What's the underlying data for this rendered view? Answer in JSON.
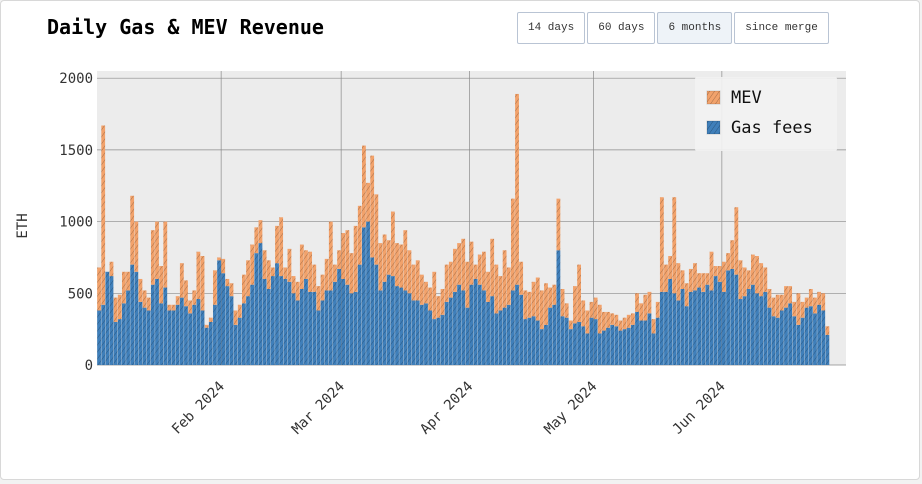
{
  "title": "Daily Gas & MEV Revenue",
  "range_buttons": [
    {
      "label": "14 days",
      "active": false
    },
    {
      "label": "60 days",
      "active": false
    },
    {
      "label": "6 months",
      "active": true
    },
    {
      "label": "since merge",
      "active": false
    }
  ],
  "colors": {
    "gas": "#3f7fba",
    "mev": "#f2a26b",
    "plot_bg": "#ececec",
    "grid": "#8a8a8a"
  },
  "chart_data": {
    "type": "bar",
    "stacked": true,
    "hatched": true,
    "title": "Daily Gas & MEV Revenue",
    "xlabel": "",
    "ylabel": "ETH",
    "ylim": [
      0,
      2050
    ],
    "yticks": [
      0,
      500,
      1000,
      1500,
      2000
    ],
    "x_start": "2024-01-02",
    "x_end": "2024-06-30",
    "xticks": [
      {
        "label": "Feb 2024",
        "date": "2024-02-01"
      },
      {
        "label": "Mar 2024",
        "date": "2024-03-01"
      },
      {
        "label": "Apr 2024",
        "date": "2024-04-01"
      },
      {
        "label": "May 2024",
        "date": "2024-05-01"
      },
      {
        "label": "Jun 2024",
        "date": "2024-06-01"
      }
    ],
    "legend": {
      "position": "top-right",
      "entries": [
        "MEV",
        "Gas fees"
      ]
    },
    "grid": true,
    "series": [
      {
        "name": "Gas fees",
        "values": [
          380,
          420,
          650,
          620,
          300,
          320,
          430,
          520,
          700,
          650,
          440,
          400,
          380,
          560,
          600,
          430,
          540,
          380,
          380,
          420,
          470,
          410,
          360,
          420,
          460,
          380,
          260,
          300,
          420,
          730,
          640,
          550,
          480,
          280,
          330,
          430,
          480,
          560,
          780,
          850,
          600,
          530,
          620,
          710,
          620,
          600,
          580,
          500,
          450,
          530,
          600,
          510,
          510,
          380,
          450,
          520,
          520,
          580,
          670,
          600,
          560,
          500,
          510,
          700,
          960,
          1000,
          750,
          700,
          520,
          580,
          630,
          620,
          550,
          540,
          520,
          500,
          450,
          450,
          420,
          430,
          380,
          320,
          330,
          350,
          440,
          470,
          510,
          560,
          520,
          400,
          560,
          600,
          560,
          520,
          440,
          480,
          360,
          380,
          400,
          420,
          520,
          560,
          490,
          320,
          330,
          340,
          310,
          250,
          280,
          400,
          420,
          800,
          340,
          330,
          250,
          290,
          300,
          270,
          220,
          330,
          320,
          220,
          240,
          260,
          280,
          270,
          240,
          250,
          260,
          280,
          370,
          310,
          310,
          360,
          220,
          330,
          510,
          510,
          600,
          500,
          450,
          530,
          410,
          510,
          520,
          540,
          510,
          560,
          520,
          620,
          580,
          510,
          660,
          670,
          630,
          460,
          480,
          530,
          560,
          500,
          480,
          510,
          400,
          340,
          330,
          380,
          400,
          430,
          340,
          280,
          330,
          400,
          410,
          360,
          420,
          380,
          210
        ],
        "note": "Gas fees daily values"
      },
      {
        "name": "MEV",
        "values": [
          300,
          1250,
          0,
          100,
          170,
          170,
          220,
          130,
          480,
          350,
          160,
          120,
          90,
          380,
          400,
          260,
          460,
          40,
          40,
          60,
          240,
          180,
          90,
          100,
          330,
          380,
          20,
          30,
          240,
          20,
          100,
          50,
          90,
          100,
          90,
          200,
          250,
          280,
          180,
          160,
          200,
          200,
          60,
          260,
          410,
          80,
          230,
          120,
          130,
          310,
          200,
          280,
          190,
          170,
          180,
          220,
          480,
          120,
          130,
          320,
          380,
          280,
          460,
          410,
          570,
          270,
          710,
          490,
          330,
          330,
          240,
          450,
          300,
          300,
          420,
          300,
          250,
          280,
          210,
          150,
          160,
          330,
          150,
          180,
          260,
          250,
          300,
          290,
          360,
          320,
          300,
          100,
          210,
          270,
          210,
          400,
          340,
          240,
          400,
          260,
          640,
          1330,
          230,
          200,
          180,
          240,
          300,
          270,
          290,
          140,
          140,
          360,
          190,
          100,
          60,
          260,
          400,
          180,
          160,
          110,
          150,
          200,
          130,
          110,
          80,
          80,
          70,
          80,
          90,
          80,
          130,
          120,
          180,
          150,
          100,
          110,
          660,
          190,
          160,
          670,
          260,
          130,
          160,
          160,
          190,
          100,
          130,
          80,
          270,
          70,
          110,
          210,
          120,
          200,
          470,
          270,
          200,
          130,
          210,
          260,
          230,
          170,
          130,
          130,
          160,
          110,
          150,
          120,
          100,
          220,
          110,
          70,
          120,
          110,
          90,
          120,
          60
        ]
      }
    ]
  }
}
